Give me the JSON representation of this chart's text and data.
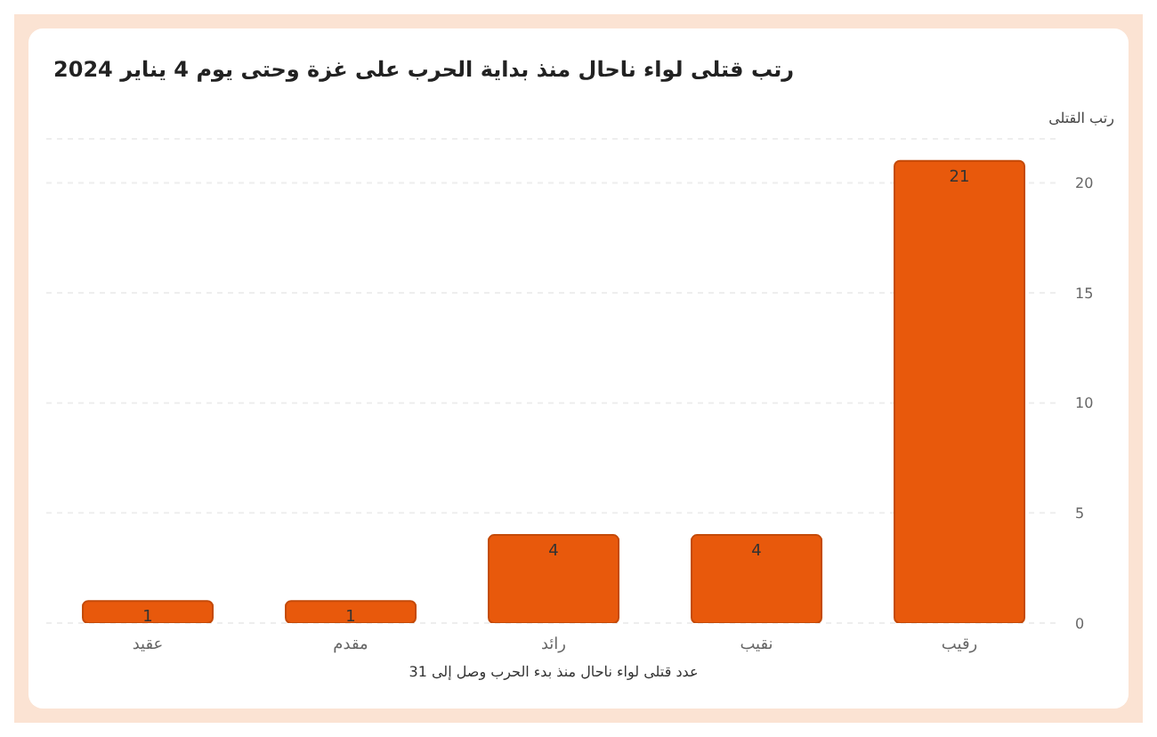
{
  "chart_data": {
    "type": "bar",
    "title": "رتب قتلى لواء ناحال منذ بداية الحرب على غزة وحتى يوم 4 يناير 2024",
    "ylabel": "رتب القتلى",
    "xlabel": "عدد قتلى لواء ناحال منذ بدء الحرب وصل إلى 31",
    "categories": [
      "عقيد",
      "مقدم",
      "رائد",
      "نقيب",
      "رقيب"
    ],
    "values": [
      1,
      1,
      4,
      4,
      21
    ],
    "color": "#e8590c",
    "ylim": [
      0,
      22
    ],
    "yticks": [
      0,
      5,
      10,
      15,
      20
    ],
    "grid": "y",
    "data_labels": true
  }
}
